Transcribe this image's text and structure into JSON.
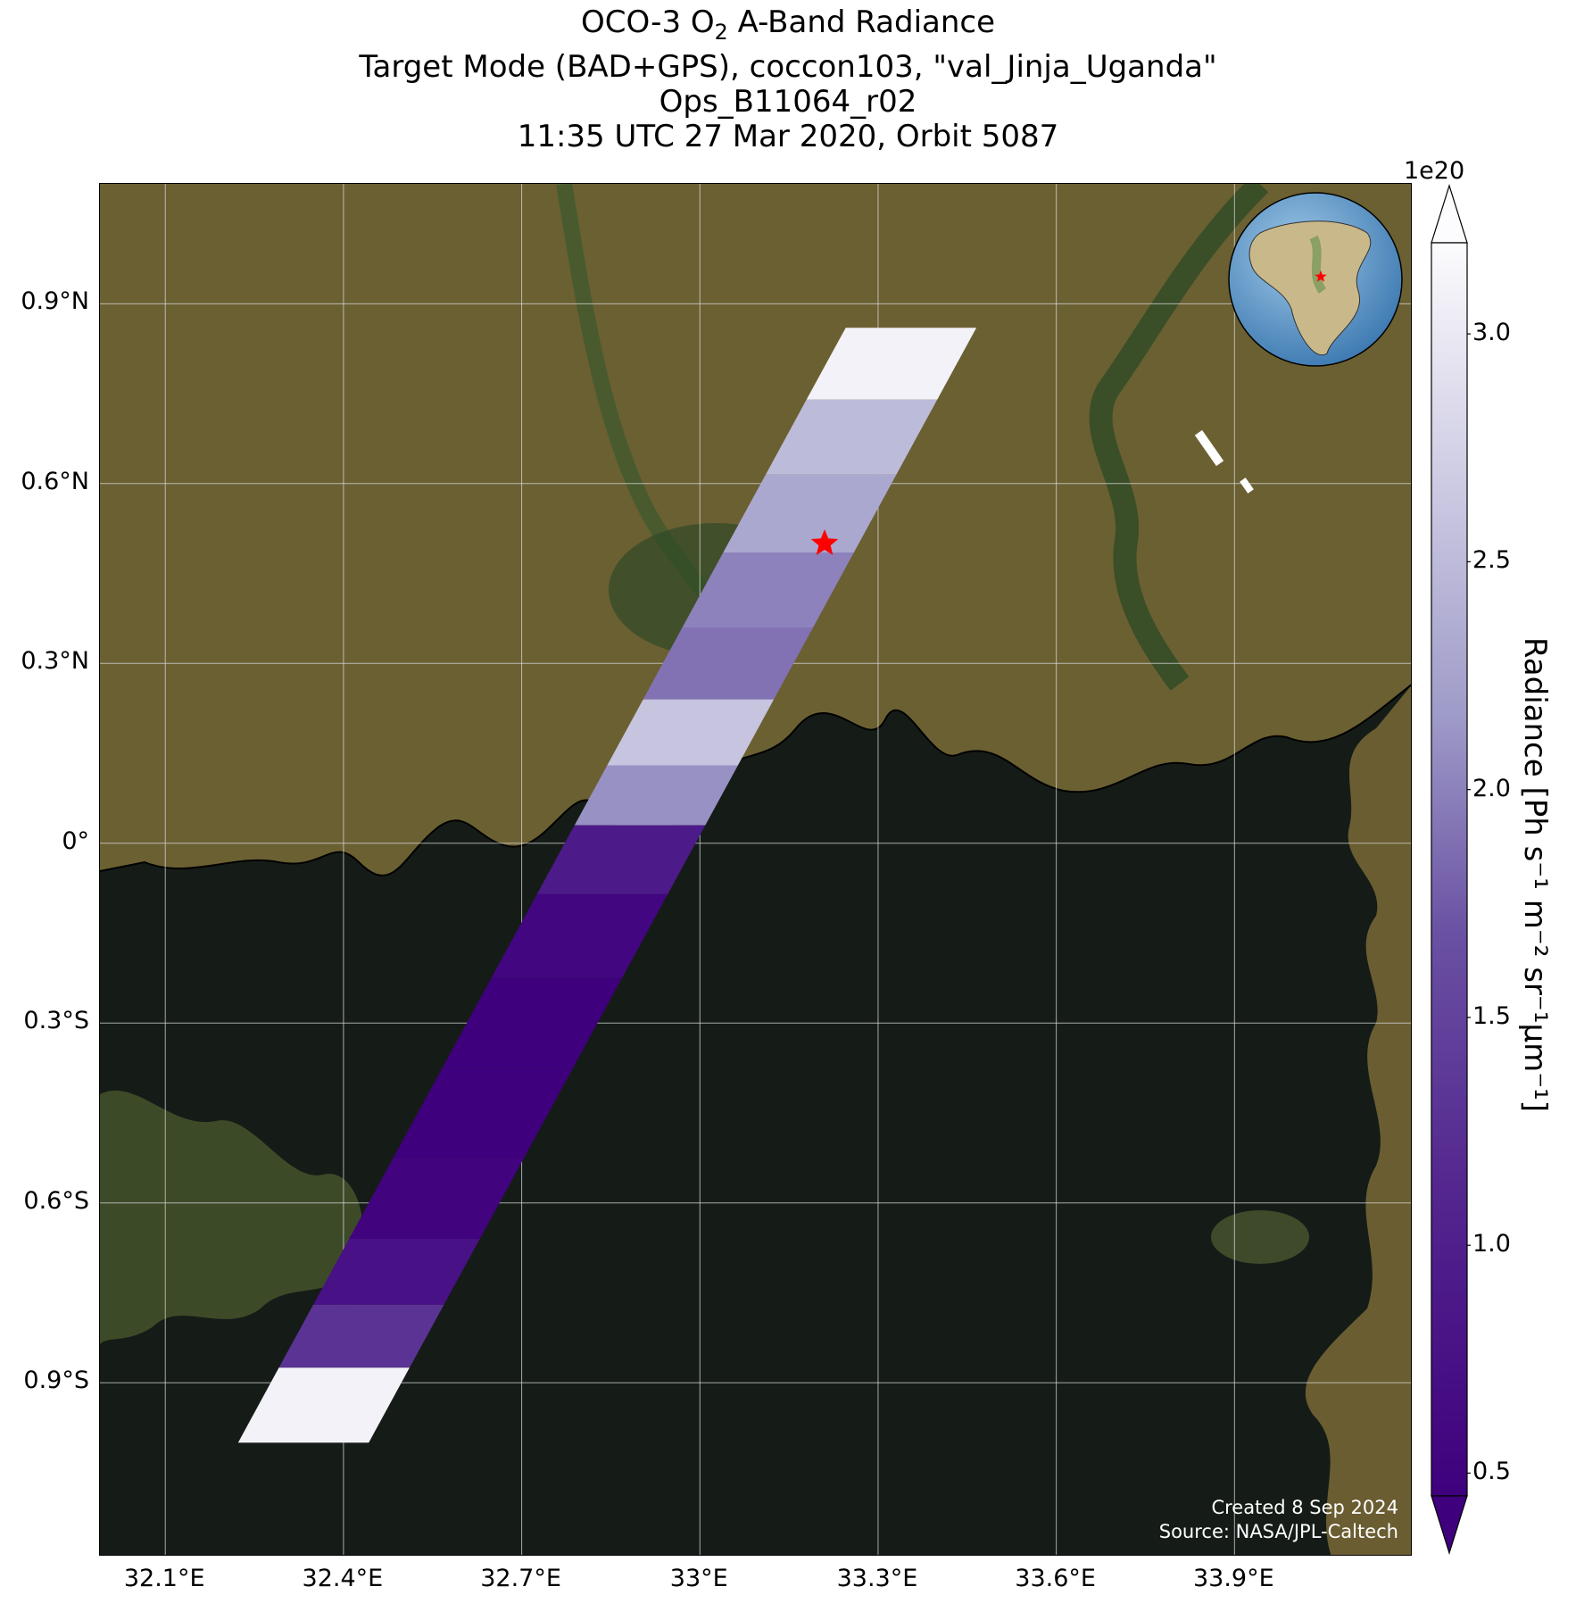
{
  "title": {
    "line1_prefix": "OCO-3 O",
    "line1_sub": "2",
    "line1_suffix": " A-Band Radiance",
    "line2": "Target Mode (BAD+GPS), coccon103, \"val_Jinja_Uganda\"",
    "line3": "Ops_B11064_r02",
    "line4": "11:35 UTC 27 Mar 2020, Orbit 5087"
  },
  "map": {
    "lon_range": [
      31.99,
      34.2
    ],
    "lat_range": [
      -1.19,
      1.1
    ],
    "x_ticks": [
      {
        "value": 32.1,
        "label": "32.1°E"
      },
      {
        "value": 32.4,
        "label": "32.4°E"
      },
      {
        "value": 32.7,
        "label": "32.7°E"
      },
      {
        "value": 33.0,
        "label": "33°E"
      },
      {
        "value": 33.3,
        "label": "33.3°E"
      },
      {
        "value": 33.6,
        "label": "33.6°E"
      },
      {
        "value": 33.9,
        "label": "33.9°E"
      }
    ],
    "y_ticks": [
      {
        "value": 0.9,
        "label": "0.9°N"
      },
      {
        "value": 0.6,
        "label": "0.6°N"
      },
      {
        "value": 0.3,
        "label": "0.3°N"
      },
      {
        "value": 0.0,
        "label": "0°"
      },
      {
        "value": -0.3,
        "label": "0.3°S"
      },
      {
        "value": -0.6,
        "label": "0.6°S"
      },
      {
        "value": -0.9,
        "label": "0.9°S"
      }
    ],
    "target": {
      "lon": 33.21,
      "lat": 0.5,
      "marker": "star-icon",
      "color": "#ff0000"
    },
    "swath_segments": [
      {
        "lat": 0.8,
        "radiance": 3.1e+20
      },
      {
        "lat": 0.68,
        "radiance": 2.5e+20
      },
      {
        "lat": 0.55,
        "radiance": 2.3e+20
      },
      {
        "lat": 0.42,
        "radiance": 2e+20
      },
      {
        "lat": 0.3,
        "radiance": 1.9e+20
      },
      {
        "lat": 0.18,
        "radiance": 2.6e+20
      },
      {
        "lat": 0.08,
        "radiance": 2.1e+20
      },
      {
        "lat": -0.02,
        "radiance": 9e+19
      },
      {
        "lat": -0.15,
        "radiance": 5.5e+19
      },
      {
        "lat": -0.3,
        "radiance": 4.5e+19
      },
      {
        "lat": -0.45,
        "radiance": 4.5e+19
      },
      {
        "lat": -0.6,
        "radiance": 5e+19
      },
      {
        "lat": -0.72,
        "radiance": 7.5e+19
      },
      {
        "lat": -0.82,
        "radiance": 1.3e+20
      },
      {
        "lat": -0.93,
        "radiance": 3.1e+20
      }
    ],
    "colors": {
      "land": "#5f5a2e",
      "lake": "#151c17",
      "grid": "#d9d9d9"
    }
  },
  "colorbar": {
    "label": "Radiance [Ph s⁻¹ m⁻² sr⁻¹μm⁻¹]",
    "exponent": "1e20",
    "min": 0.45,
    "max": 3.2,
    "ticks": [
      {
        "value": 0.5,
        "label": "0.5"
      },
      {
        "value": 1.0,
        "label": "1.0"
      },
      {
        "value": 1.5,
        "label": "1.5"
      },
      {
        "value": 2.0,
        "label": "2.0"
      },
      {
        "value": 2.5,
        "label": "2.5"
      },
      {
        "value": 3.0,
        "label": "3.0"
      }
    ],
    "colormap": "Purples_r",
    "color_low": "#3f007d",
    "color_high": "#fcfbfd"
  },
  "inset_globe": {
    "marker": "star-icon",
    "marker_color": "#ff0000"
  },
  "credits": {
    "created": "Created 8 Sep 2024",
    "source": "Source: NASA/JPL-Caltech"
  }
}
